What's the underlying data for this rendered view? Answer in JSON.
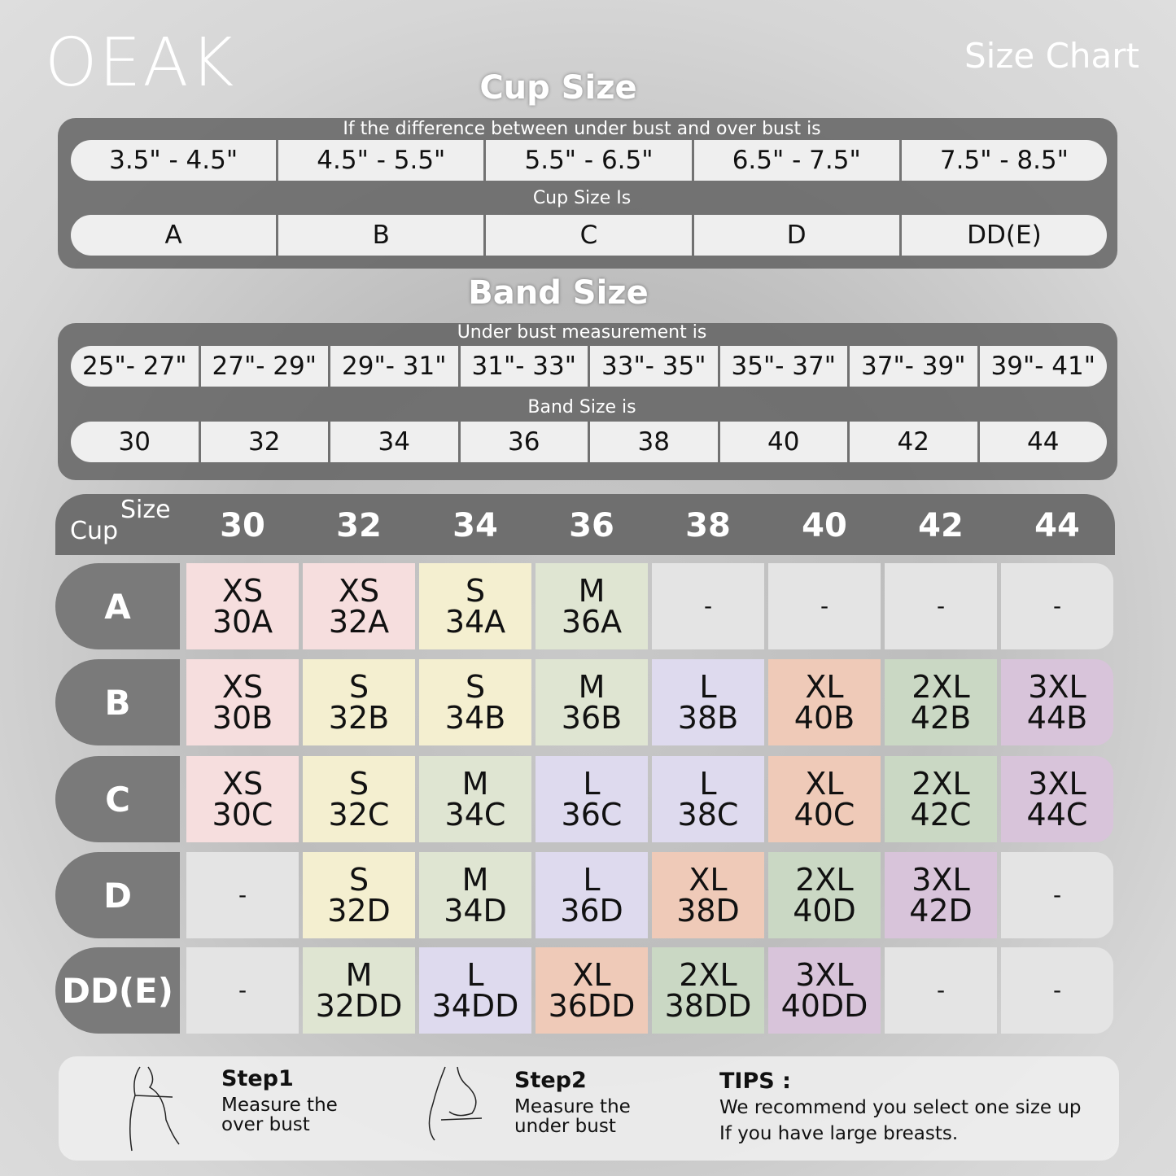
{
  "brand": "OEAK",
  "title": "Size Chart",
  "cup_section": {
    "heading": "Cup Size",
    "caption": "If the  difference between under bust and over bust is",
    "differences": [
      "3.5\" -  4.5\"",
      "4.5\" -  5.5\"",
      "5.5\" -  6.5\"",
      "6.5\" -  7.5\"",
      "7.5\" -  8.5\""
    ],
    "result_caption": "Cup Size Is",
    "cups": [
      "A",
      "B",
      "C",
      "D",
      "DD(E)"
    ]
  },
  "band_section": {
    "heading": "Band Size",
    "caption": "Under bust measurement is",
    "measurements": [
      "25\"- 27\"",
      "27\"- 29\"",
      "29\"- 31\"",
      "31\"- 33\"",
      "33\"- 35\"",
      "35\"- 37\"",
      "37\"- 39\"",
      "39\"- 41\""
    ],
    "result_caption": "Band Size is",
    "bands": [
      "30",
      "32",
      "34",
      "36",
      "38",
      "40",
      "42",
      "44"
    ]
  },
  "grid": {
    "corner_cup": "Cup",
    "corner_size": "Size",
    "columns": [
      "30",
      "32",
      "34",
      "36",
      "38",
      "40",
      "42",
      "44"
    ],
    "colors": {
      "XS": "#f6dede",
      "S": "#f4efd0",
      "M": "#dfe5d2",
      "L": "#dedaee",
      "XL": "#efcab8",
      "2XL": "#cad8c4",
      "3XL": "#d8c4da",
      "-": "#e4e4e4"
    },
    "rows": [
      {
        "cup": "A",
        "cells": [
          [
            "XS",
            "30A"
          ],
          [
            "XS",
            "32A"
          ],
          [
            "S",
            "34A"
          ],
          [
            "M",
            "36A"
          ],
          [
            "-"
          ],
          [
            "-"
          ],
          [
            "-"
          ],
          [
            "-"
          ]
        ]
      },
      {
        "cup": "B",
        "cells": [
          [
            "XS",
            "30B"
          ],
          [
            "S",
            "32B"
          ],
          [
            "S",
            "34B"
          ],
          [
            "M",
            "36B"
          ],
          [
            "L",
            "38B"
          ],
          [
            "XL",
            "40B"
          ],
          [
            "2XL",
            "42B"
          ],
          [
            "3XL",
            "44B"
          ]
        ]
      },
      {
        "cup": "C",
        "cells": [
          [
            "XS",
            "30C"
          ],
          [
            "S",
            "32C"
          ],
          [
            "M",
            "34C"
          ],
          [
            "L",
            "36C"
          ],
          [
            "L",
            "38C"
          ],
          [
            "XL",
            "40C"
          ],
          [
            "2XL",
            "42C"
          ],
          [
            "3XL",
            "44C"
          ]
        ]
      },
      {
        "cup": "D",
        "cells": [
          [
            "-"
          ],
          [
            "S",
            "32D"
          ],
          [
            "M",
            "34D"
          ],
          [
            "L",
            "36D"
          ],
          [
            "XL",
            "38D"
          ],
          [
            "2XL",
            "40D"
          ],
          [
            "3XL",
            "42D"
          ],
          [
            "-"
          ]
        ]
      },
      {
        "cup": "DD(E)",
        "cells": [
          [
            "-"
          ],
          [
            "M",
            "32DD"
          ],
          [
            "L",
            "34DD"
          ],
          [
            "XL",
            "36DD"
          ],
          [
            "2XL",
            "38DD"
          ],
          [
            "3XL",
            "40DD"
          ],
          [
            "-"
          ],
          [
            "-"
          ]
        ]
      }
    ]
  },
  "steps": {
    "step1_title": "Step1",
    "step1_text": "Measure the over bust",
    "step2_title": "Step2",
    "step2_text": "Measure the under bust",
    "tips_title": "TIPS :",
    "tips_line1": "We recommend you select one size up",
    "tips_line2": "If you have large breasts."
  }
}
